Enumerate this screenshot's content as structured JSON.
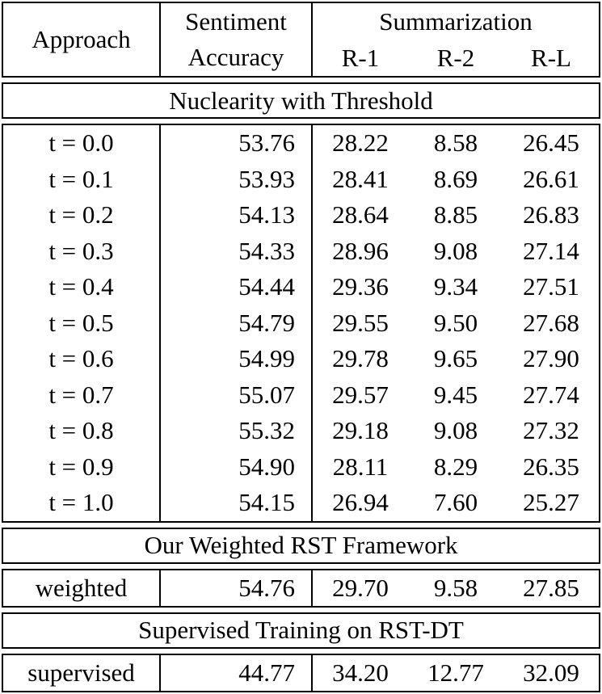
{
  "table": {
    "header": {
      "approach": "Approach",
      "sentiment_line1": "Sentiment",
      "sentiment_line2": "Accuracy",
      "summarization": "Summarization",
      "sub_columns": [
        "R-1",
        "R-2",
        "R-L"
      ]
    },
    "sections": [
      {
        "title": "Nuclearity with Threshold",
        "rows": [
          [
            "t = 0.0",
            "53.76",
            "28.22",
            "8.58",
            "26.45"
          ],
          [
            "t = 0.1",
            "53.93",
            "28.41",
            "8.69",
            "26.61"
          ],
          [
            "t = 0.2",
            "54.13",
            "28.64",
            "8.85",
            "26.83"
          ],
          [
            "t = 0.3",
            "54.33",
            "28.96",
            "9.08",
            "27.14"
          ],
          [
            "t = 0.4",
            "54.44",
            "29.36",
            "9.34",
            "27.51"
          ],
          [
            "t = 0.5",
            "54.79",
            "29.55",
            "9.50",
            "27.68"
          ],
          [
            "t = 0.6",
            "54.99",
            "29.78",
            "9.65",
            "27.90"
          ],
          [
            "t = 0.7",
            "55.07",
            "29.57",
            "9.45",
            "27.74"
          ],
          [
            "t = 0.8",
            "55.32",
            "29.18",
            "9.08",
            "27.32"
          ],
          [
            "t = 0.9",
            "54.90",
            "28.11",
            "8.29",
            "26.35"
          ],
          [
            "t = 1.0",
            "54.15",
            "26.94",
            "7.60",
            "25.27"
          ]
        ]
      },
      {
        "title": "Our Weighted RST Framework",
        "rows": [
          [
            "weighted",
            "54.76",
            "29.70",
            "9.58",
            "27.85"
          ]
        ]
      },
      {
        "title": "Supervised Training on RST-DT",
        "rows": [
          [
            "supervised",
            "44.77",
            "34.20",
            "12.77",
            "32.09"
          ]
        ]
      }
    ],
    "colors": {
      "text": "#000000",
      "border": "#000000",
      "background": "#ffffff"
    }
  }
}
